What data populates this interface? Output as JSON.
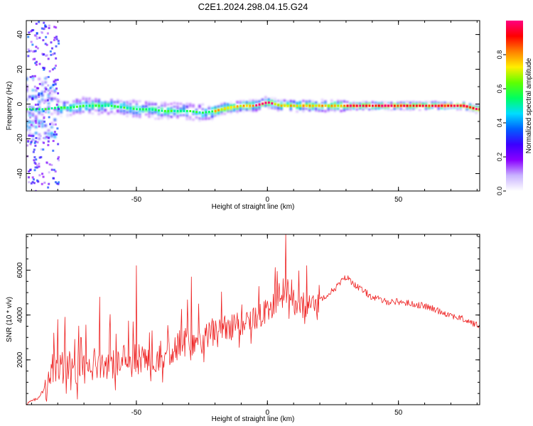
{
  "figure": {
    "title": "C2E1.2024.298.04.15.G24"
  },
  "chart_data": [
    {
      "type": "heatmap",
      "xlabel": "Height of straight line (km)",
      "ylabel": "Frequency (Hz)",
      "xlim": [
        -92,
        81
      ],
      "ylim": [
        -50,
        48
      ],
      "xticks": [
        -50,
        0,
        50
      ],
      "yticks": [
        -40,
        -20,
        0,
        20,
        40
      ],
      "ridge": {
        "x": [
          -92,
          -85,
          -80,
          -75,
          -70,
          -65,
          -60,
          -55,
          -50,
          -45,
          -40,
          -35,
          -30,
          -25,
          -20,
          -15,
          -10,
          -5,
          0,
          5,
          10,
          15,
          20,
          25,
          30,
          40,
          50,
          60,
          70,
          75,
          80
        ],
        "y": [
          -3,
          -3,
          -2,
          -2,
          -1,
          -1,
          -1,
          -2,
          -3,
          -3,
          -4,
          -4,
          -4,
          -5,
          -4,
          -2,
          -1,
          -1,
          1,
          -1,
          -1,
          -1,
          -1,
          -1,
          -1,
          -1,
          -1,
          -1,
          -1,
          -1,
          -3
        ]
      },
      "colorbar": {
        "label": "Normalized spectral amplitude",
        "range": [
          0,
          1
        ],
        "ticks": [
          0.0,
          0.2,
          0.4,
          0.6,
          0.8
        ],
        "tick_labels": [
          "0.0",
          "0.2",
          "0.4",
          "0.6",
          "0.8"
        ],
        "colors": [
          "#ffffff",
          "#c9b3ff",
          "#8a00ff",
          "#3b00ff",
          "#0060ff",
          "#00ddff",
          "#00ff60",
          "#60ff00",
          "#ffee00",
          "#ff8000",
          "#ff0000",
          "#ff0080"
        ]
      },
      "grid": false
    },
    {
      "type": "line",
      "xlabel": "Height of straight line (km)",
      "ylabel": "SNR (10 * v/v)",
      "xlim": [
        -92,
        81
      ],
      "ylim": [
        0,
        7600
      ],
      "xticks": [
        -50,
        0,
        50
      ],
      "yticks": [
        2000,
        4000,
        6000
      ],
      "series_color": "#ee2222",
      "x": [
        -92,
        -88,
        -85,
        -82,
        -80,
        -78,
        -75,
        -72,
        -70,
        -65,
        -60,
        -55,
        -50,
        -45,
        -40,
        -35,
        -30,
        -25,
        -20,
        -15,
        -10,
        -5,
        0,
        3,
        7,
        10,
        15,
        20,
        25,
        30,
        35,
        40,
        45,
        50,
        55,
        60,
        65,
        70,
        75,
        81
      ],
      "y": [
        50,
        250,
        700,
        1600,
        2000,
        1900,
        1700,
        1600,
        1500,
        1900,
        1800,
        2000,
        2100,
        2100,
        2200,
        2600,
        2800,
        3000,
        3300,
        3400,
        3700,
        3900,
        4100,
        4600,
        5200,
        4600,
        4400,
        4700,
        5100,
        5700,
        5200,
        4800,
        4600,
        4600,
        4500,
        4400,
        4200,
        4000,
        3800,
        3500
      ],
      "peaks": [
        {
          "x": 7,
          "y": 7600
        },
        {
          "x": -50,
          "y": 6200
        },
        {
          "x": -29,
          "y": 5700
        },
        {
          "x": 15,
          "y": 6200
        },
        {
          "x": -64,
          "y": 4800
        },
        {
          "x": -80,
          "y": 3800
        }
      ],
      "grid": false
    }
  ]
}
